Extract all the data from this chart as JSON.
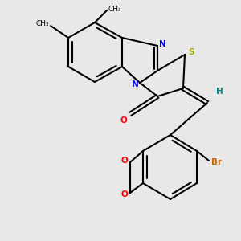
{
  "bg": "#e8e8e8",
  "bond_lw": 1.5,
  "colors": {
    "C": "#000000",
    "N": "#0000ee",
    "S": "#aaaa00",
    "O": "#ff0000",
    "Br": "#cc6600",
    "H": "#008888"
  }
}
